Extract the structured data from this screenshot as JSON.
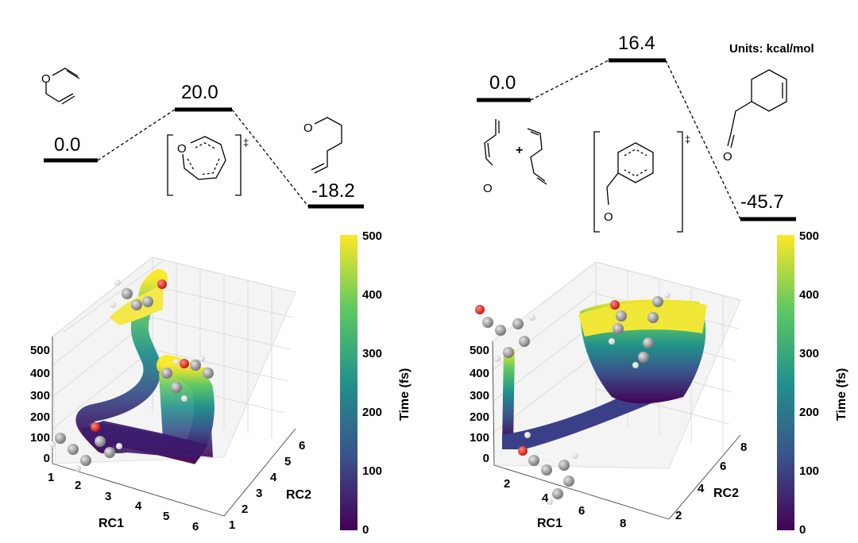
{
  "units_label": "Units: kcal/mol",
  "left_profile": {
    "reactant_energy": "0.0",
    "ts_energy": "20.0",
    "product_energy": "-18.2",
    "reactant_O": "O",
    "ts_O": "O",
    "product_O": "O",
    "ts_marker": "‡"
  },
  "right_profile": {
    "reactant_energy": "0.0",
    "ts_energy": "16.4",
    "product_energy": "-45.7",
    "reactant_O": "O",
    "plus": "+",
    "ts_O": "O",
    "product_O": "O",
    "ts_marker": "‡"
  },
  "left_plot": {
    "z_ticks": [
      "500",
      "400",
      "300",
      "200",
      "100",
      "0"
    ],
    "rc1_ticks": [
      "1",
      "2",
      "3",
      "4",
      "5",
      "6"
    ],
    "rc2_ticks": [
      "1",
      "2",
      "3",
      "4",
      "5",
      "6"
    ],
    "rc1_label": "RC1",
    "rc2_label": "RC2"
  },
  "right_plot": {
    "z_ticks": [
      "500",
      "400",
      "300",
      "200",
      "100",
      "0"
    ],
    "rc1_ticks": [
      "2",
      "4",
      "6",
      "8"
    ],
    "rc2_ticks": [
      "2",
      "4",
      "6",
      "8"
    ],
    "rc1_label": "RC1",
    "rc2_label": "RC2"
  },
  "colorbar_left": {
    "ticks": [
      "500",
      "400",
      "300",
      "200",
      "100",
      "0"
    ],
    "label": "Time (fs)"
  },
  "colorbar_right": {
    "ticks": [
      "500",
      "400",
      "300",
      "200",
      "100",
      "0"
    ],
    "label": "Time (fs)"
  },
  "colors": {
    "viridis": [
      "#440154",
      "#3b528b",
      "#21918c",
      "#5ec962",
      "#fde725"
    ],
    "oxygen": "#e0201b",
    "carbon": "#8c8c8c",
    "hydrogen": "#f2f2f2"
  }
}
